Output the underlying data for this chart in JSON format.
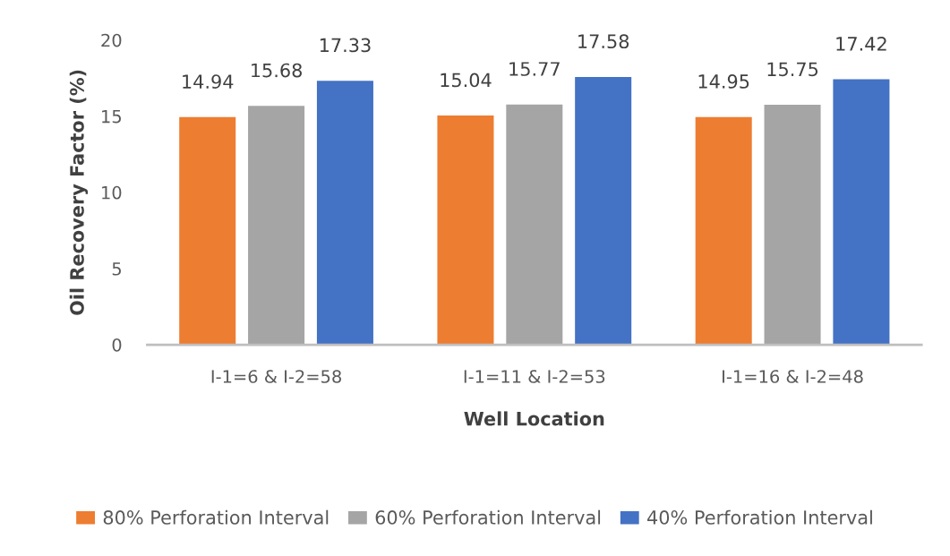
{
  "chart_data": {
    "type": "bar",
    "xlabel": "Well Location",
    "ylabel": "Oil Recovery Factor (%)",
    "categories": [
      "I-1=6 & I-2=58",
      "I-1=11 & I-2=53",
      "I-1=16 & I-2=48"
    ],
    "series": [
      {
        "name": "80% Perforation Interval",
        "color": "#ed7d31",
        "values": [
          14.94,
          15.04,
          14.95
        ]
      },
      {
        "name": "60% Perforation Interval",
        "color": "#a5a5a5",
        "values": [
          15.68,
          15.77,
          15.75
        ]
      },
      {
        "name": "40% Perforation Interval",
        "color": "#4472c4",
        "values": [
          17.33,
          17.58,
          17.42
        ]
      }
    ],
    "ylim": [
      0,
      20
    ],
    "yticks": [
      0,
      5,
      10,
      15,
      20
    ],
    "grid": false,
    "legend": "bottom",
    "data_labels": true
  }
}
